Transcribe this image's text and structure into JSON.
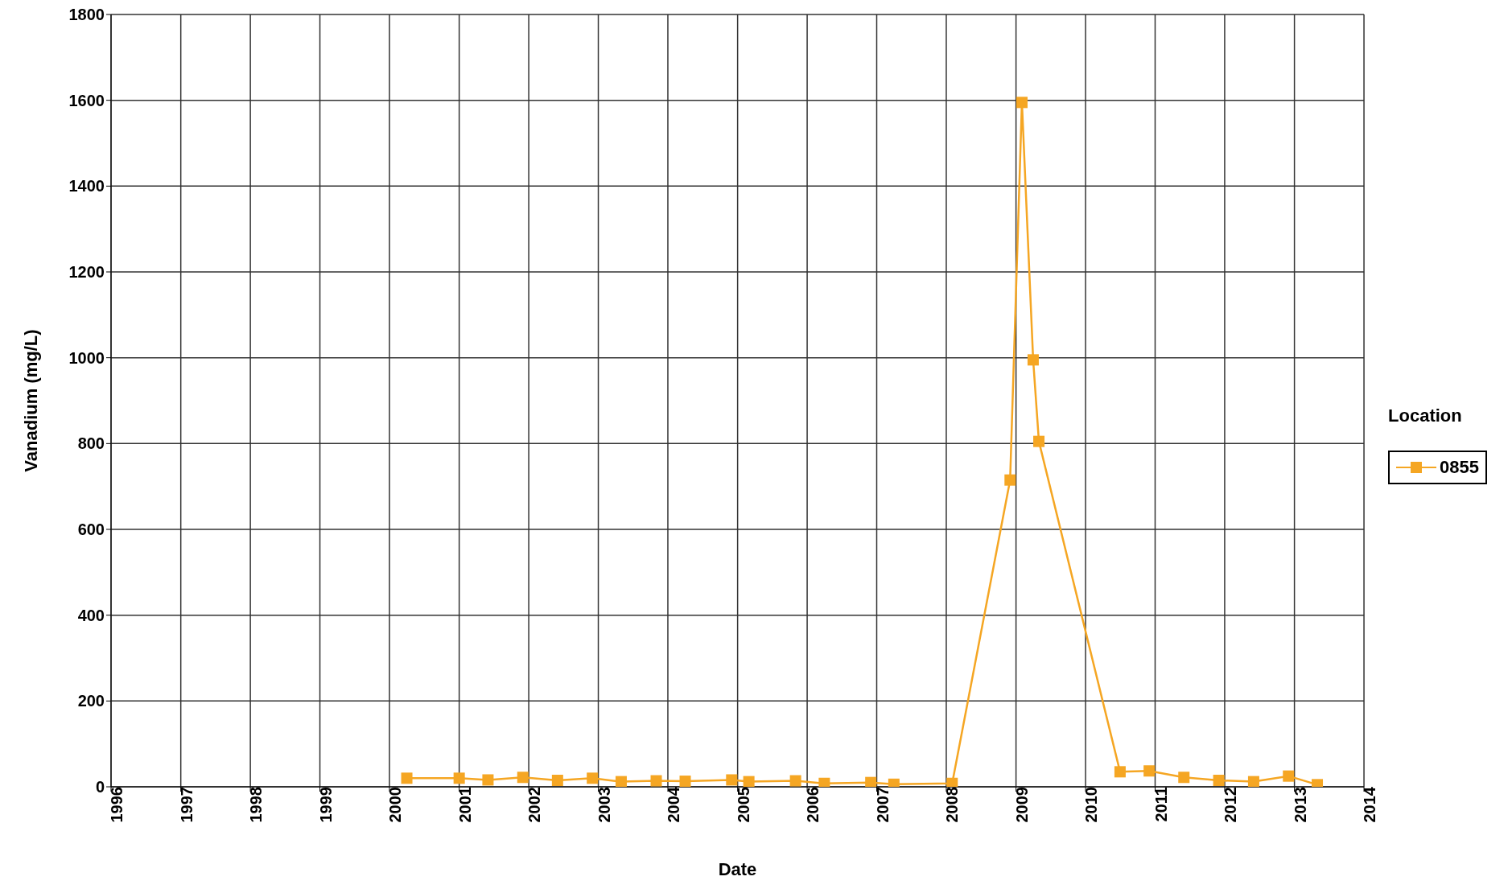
{
  "chart_data": {
    "type": "line",
    "xlabel": "Date",
    "ylabel": "Vanadium (mg/L)",
    "legend_title": "Location",
    "legend": "right",
    "grid": true,
    "marker": "square",
    "line_style": "solid",
    "x": [
      "2000-04",
      "2001-01",
      "2001-06",
      "2001-12",
      "2002-06",
      "2002-12",
      "2003-05",
      "2003-11",
      "2004-04",
      "2004-12",
      "2005-03",
      "2005-11",
      "2006-04",
      "2006-12",
      "2007-04",
      "2008-02",
      "2008-12",
      "2009-02",
      "2009-04",
      "2009-05",
      "2010-07",
      "2010-12",
      "2011-06",
      "2011-12",
      "2012-06",
      "2012-12",
      "2013-05"
    ],
    "series": [
      {
        "name": "0855",
        "color": "#f5a623",
        "values": [
          20,
          20,
          16,
          22,
          15,
          20,
          12,
          14,
          13,
          16,
          12,
          14,
          8,
          10,
          6,
          8,
          715,
          1595,
          995,
          805,
          35,
          37,
          22,
          15,
          12,
          25,
          5
        ]
      }
    ],
    "xlim": [
      "1996",
      "2014"
    ],
    "xticks": [
      "1996",
      "1997",
      "1998",
      "1999",
      "2000",
      "2001",
      "2002",
      "2003",
      "2004",
      "2005",
      "2006",
      "2007",
      "2008",
      "2009",
      "2010",
      "2011",
      "2012",
      "2013",
      "2014"
    ],
    "ylim": [
      0,
      1800
    ],
    "yticks": [
      0,
      200,
      400,
      600,
      800,
      1000,
      1200,
      1400,
      1600,
      1800
    ]
  }
}
